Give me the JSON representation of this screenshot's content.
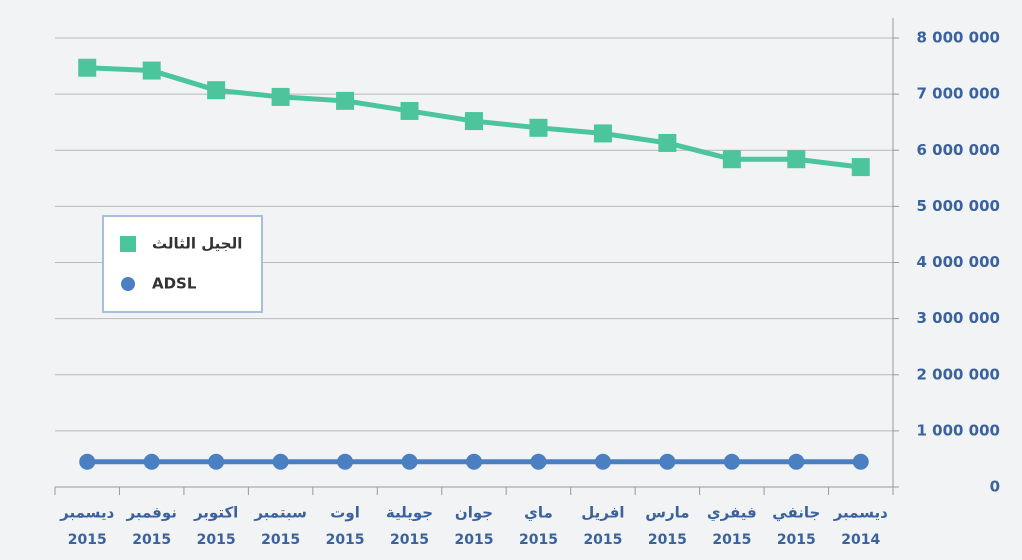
{
  "chart_data": {
    "type": "line",
    "categories": [
      [
        "ديسمبر",
        "2015"
      ],
      [
        "نوفمبر",
        "2015"
      ],
      [
        "اكتوبر",
        "2015"
      ],
      [
        "سبتمبر",
        "2015"
      ],
      [
        "اوت",
        "2015"
      ],
      [
        "جويلية",
        "2015"
      ],
      [
        "جوان",
        "2015"
      ],
      [
        "ماي",
        "2015"
      ],
      [
        "افريل",
        "2015"
      ],
      [
        "مارس",
        "2015"
      ],
      [
        "فيفري",
        "2015"
      ],
      [
        "جانفي",
        "2015"
      ],
      [
        "ديسمبر",
        "2014"
      ]
    ],
    "series": [
      {
        "name": "الجيل الثالث",
        "color": "#4cc59d",
        "marker": "square",
        "values": [
          7470000,
          7420000,
          7070000,
          6950000,
          6880000,
          6700000,
          6520000,
          6400000,
          6300000,
          6130000,
          5840000,
          5840000,
          5700000
        ]
      },
      {
        "name": "ADSL",
        "color": "#4a7fc2",
        "marker": "circle",
        "values": [
          450000,
          450000,
          450000,
          450000,
          450000,
          450000,
          450000,
          450000,
          450000,
          450000,
          450000,
          450000,
          450000
        ]
      }
    ],
    "ylim": [
      0,
      8000000
    ],
    "yticks": [
      0,
      {
        "value": 1000000,
        "label": "1 000 000"
      },
      {
        "value": 2000000,
        "label": "2 000 000"
      },
      {
        "value": 3000000,
        "label": "3 000 000"
      },
      {
        "value": 4000000,
        "label": "4 000 000"
      },
      {
        "value": 5000000,
        "label": "5 000 000"
      },
      {
        "value": 6000000,
        "label": "6 000 000"
      },
      {
        "value": 7000000,
        "label": "7 000 000"
      },
      {
        "value": 8000000,
        "label": "8 000 000"
      }
    ],
    "grid": true,
    "y_axis_side": "right",
    "legend": "left"
  }
}
